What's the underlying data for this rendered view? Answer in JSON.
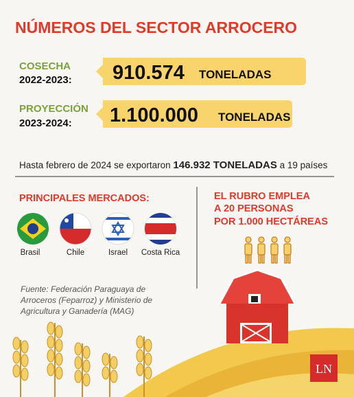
{
  "title": "NÚMEROS DEL SECTOR ARROCERO",
  "stats": [
    {
      "label": "COSECHA",
      "period": "2022-2023:",
      "value": "910.574",
      "unit": "TONELADAS"
    },
    {
      "label": "PROYECCIÓN",
      "period": "2023-2024:",
      "value": "1.100.000",
      "unit": "TONELADAS"
    }
  ],
  "export_note": {
    "before": "Hasta febrero de 2024 se exportaron",
    "highlight": "146.932 TONELADAS",
    "after": "a 19 países"
  },
  "markets": {
    "title": "PRINCIPALES MERCADOS:",
    "countries": [
      "Brasil",
      "Chile",
      "Israel",
      "Costa Rica"
    ]
  },
  "employment": {
    "lines": [
      "EL RUBRO EMPLEA",
      "A 20 PERSONAS",
      "POR 1.000 HECTÁREAS"
    ]
  },
  "source": [
    "Fuente: Federación Paraguaya de",
    "Arroceros (Feparroz) y Ministerio de",
    "Agricultura y Ganadería (MAG)"
  ],
  "logo": "LN"
}
